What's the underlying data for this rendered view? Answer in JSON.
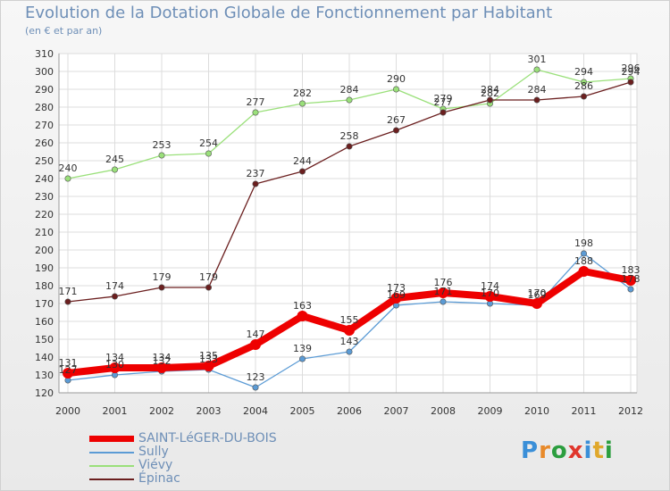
{
  "title": "Evolution de la Dotation Globale de Fonctionnement par Habitant",
  "subtitle": "(en € et par an)",
  "logo": {
    "text": "Proxiti",
    "letter_colors": [
      "#3a8fd8",
      "#e88a2a",
      "#2c9e3f",
      "#e0362c",
      "#3a8fd8",
      "#e0a82c",
      "#2c9e3f"
    ]
  },
  "chart_data": {
    "type": "line",
    "title": "Evolution de la Dotation Globale de Fonctionnement par Habitant",
    "subtitle": "(en € et par an)",
    "x": [
      "2000",
      "2001",
      "2002",
      "2003",
      "2004",
      "2005",
      "2006",
      "2007",
      "2008",
      "2009",
      "2010",
      "2011",
      "2012"
    ],
    "ylim": [
      120,
      310
    ],
    "yticks": [
      120,
      130,
      140,
      150,
      160,
      170,
      180,
      190,
      200,
      210,
      220,
      230,
      240,
      250,
      260,
      270,
      280,
      290,
      300,
      310
    ],
    "grid": true,
    "legend_position": "bottom-left",
    "series": [
      {
        "name": "SAINT-LéGER-DU-BOIS",
        "color": "#ee0000",
        "values": [
          131,
          134,
          134,
          135,
          147,
          163,
          155,
          173,
          176,
          174,
          170,
          188,
          183
        ]
      },
      {
        "name": "Sully",
        "color": "#5b9bd5",
        "values": [
          127,
          130,
          132,
          133,
          123,
          139,
          143,
          169,
          171,
          170,
          169,
          198,
          178
        ]
      },
      {
        "name": "Viévy",
        "color": "#9ae07a",
        "values": [
          240,
          245,
          253,
          254,
          277,
          282,
          284,
          290,
          279,
          282,
          301,
          294,
          296
        ]
      },
      {
        "name": "Épinac",
        "color": "#6b1f1f",
        "values": [
          171,
          174,
          179,
          179,
          237,
          244,
          258,
          267,
          277,
          284,
          284,
          286,
          294
        ]
      }
    ]
  }
}
